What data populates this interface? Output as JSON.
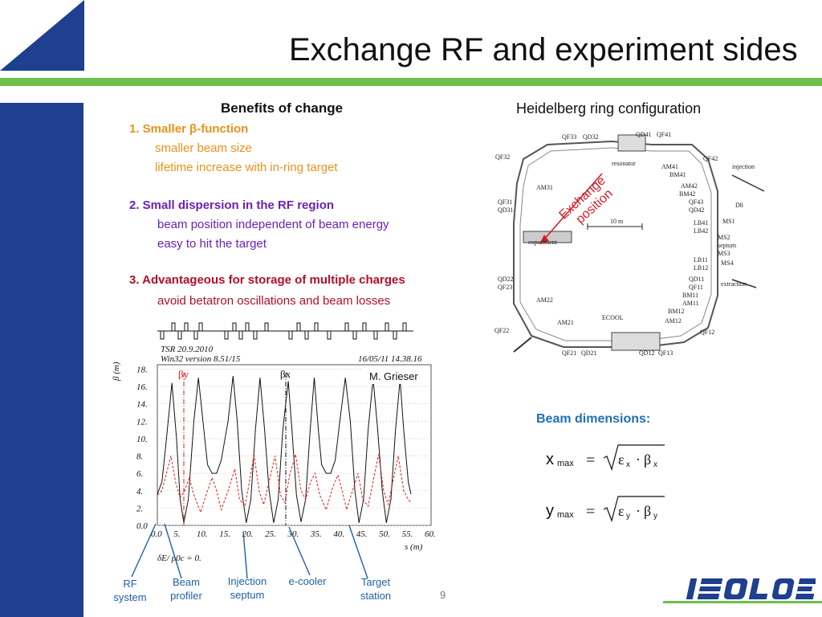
{
  "title": "Exchange RF and experiment sides",
  "benefits": {
    "heading": "Benefits of change",
    "item1": {
      "head": "1. Smaller β-function",
      "sub1": "smaller beam size",
      "sub2": "lifetime increase with in-ring target"
    },
    "item2": {
      "head": "2. Small dispersion in the RF region",
      "sub1": "beam position independent of beam energy",
      "sub2": "easy to hit the target"
    },
    "item3": {
      "head": "3. Advantageous  for storage of multiple charges",
      "sub1": "avoid betatron oscillations and beam losses"
    }
  },
  "ring": {
    "heading": "Heidelberg ring configuration",
    "exchange_line1": "Exchange",
    "exchange_line2": "position",
    "labels": {
      "qf33": "QF33",
      "qd32": "QD32",
      "qd41": "QD41",
      "qf41": "QF41",
      "qf32": "QF32",
      "resonator": "resonator",
      "am41": "AM41",
      "bm41": "BM41",
      "qf42": "QF42",
      "injection": "injection",
      "am31": "AM31",
      "am42": "AM42",
      "bm42": "BM42",
      "qf43": "QF43",
      "qd42": "QD42",
      "d8": "D8",
      "qf31": "QF31",
      "qd31": "QD31",
      "ten_m": "10 m",
      "lb41": "LB41",
      "ms1": "MS1",
      "lb42": "LB42",
      "experiment": "experiment",
      "ms2": "MS2",
      "septum": "septum",
      "ms3": "MS3",
      "lb11": "LB11",
      "ms4": "MS4",
      "lb12": "LB12",
      "qd22": "QD22",
      "qd11": "QD11",
      "qf23": "QF23",
      "qf11": "QF11",
      "extraction": "extraction",
      "bm11": "BM11",
      "am11": "AM11",
      "am22": "AM22",
      "bm12": "BM12",
      "ecool": "ECOOL",
      "am21": "AM21",
      "am12": "AM12",
      "qf22": "QF22",
      "qf12": "QF12",
      "qf21": "QF21",
      "qd21": "QD21",
      "qd12": "QD12",
      "qf13": "QF13"
    }
  },
  "plot": {
    "header_left1": "TSR 20.9.2010",
    "header_left2": "Win32 version 8.51/15",
    "header_right": "16/05/11  14.38.16",
    "author": "M. Grieser",
    "beta_x_label": "βx",
    "beta_y_label": "βy",
    "y_axis_label": "β (m)",
    "x_axis_label": "s (m)",
    "dispersion_note": "δE/ p0c  =  0.",
    "y_ticks": [
      "18.",
      "16.",
      "14.",
      "12.",
      "10.",
      "8.",
      "6.",
      "4.",
      "2.",
      "0.0"
    ],
    "x_ticks": [
      "0.0",
      "5.",
      "10.",
      "15.",
      "20.",
      "25.",
      "30.",
      "35.",
      "40.",
      "45.",
      "50.",
      "55.",
      "60."
    ],
    "colors": {
      "beta_x": "#111111",
      "beta_y": "#e0201a"
    }
  },
  "captions": {
    "rf_line1": "RF",
    "rf_line2": "system",
    "profiler_line1": "Beam",
    "profiler_line2": "profiler",
    "injection_line1": "Injection",
    "injection_line2": "septum",
    "ecooler": "e-cooler",
    "target_line1": "Target",
    "target_line2": "station"
  },
  "beam_dimensions": {
    "heading": "Beam dimensions:",
    "x_var": "x",
    "x_sub": "max",
    "x_eps": "ε",
    "x_eps_sub": "x",
    "x_beta": "β",
    "x_beta_sub": "x",
    "y_var": "y",
    "y_sub": "max",
    "y_eps": "ε",
    "y_eps_sub": "y",
    "y_beta": "β",
    "y_beta_sub": "y",
    "eq": "=",
    "dot": "·"
  },
  "page_number": "9",
  "logo": {
    "text": "ISOLDE"
  },
  "theme": {
    "navy": "#1f3f8f",
    "green": "#6cc04a"
  }
}
